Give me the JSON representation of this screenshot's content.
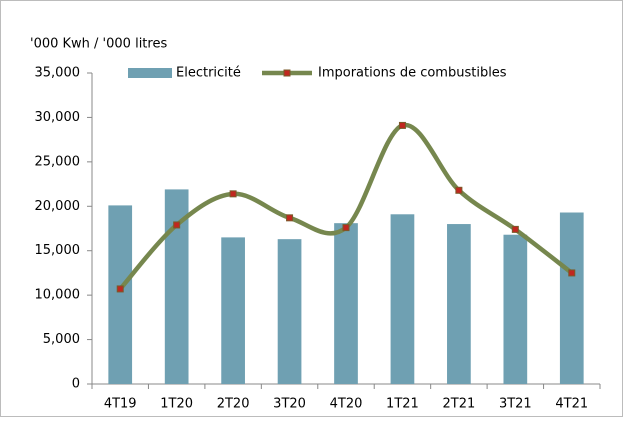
{
  "chart_data": {
    "type": "bar-line",
    "y_axis_label": "'000 Kwh / '000 litres",
    "categories": [
      "4T19",
      "1T20",
      "2T20",
      "3T20",
      "4T20",
      "1T21",
      "2T21",
      "3T21",
      "4T21"
    ],
    "series": [
      {
        "name": "Electricité",
        "type": "bar",
        "color": "#6fa0b2",
        "values": [
          20100,
          21900,
          16500,
          16300,
          18100,
          19100,
          18000,
          16800,
          19300
        ]
      },
      {
        "name": "Imporations de combustibles",
        "type": "line",
        "smooth": true,
        "color": "#76874e",
        "marker_color": "#c0271f",
        "values": [
          10700,
          17900,
          21400,
          18700,
          17600,
          29100,
          21800,
          17400,
          12500
        ]
      }
    ],
    "ylim": [
      0,
      35000
    ],
    "yticks": [
      0,
      {
        "value": 5000,
        "label": "5,000"
      },
      {
        "value": 10000,
        "label": "10,000"
      },
      {
        "value": 15000,
        "label": "15,000"
      },
      {
        "value": 20000,
        "label": "20,000"
      },
      {
        "value": 25000,
        "label": "25,000"
      },
      {
        "value": 30000,
        "label": "30,000"
      },
      {
        "value": 35000,
        "label": "35,000"
      }
    ],
    "grid": false,
    "legend": "top"
  }
}
